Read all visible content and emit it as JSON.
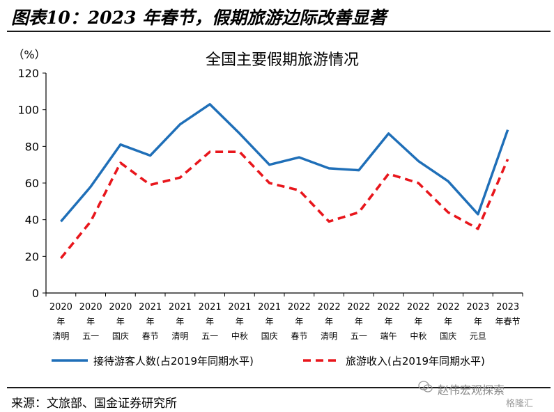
{
  "header": {
    "title": "图表10：2023 年春节，假期旅游边际改善显著"
  },
  "source": {
    "text": "来源：文旅部、国金证券研究所"
  },
  "watermark": {
    "primary": "赵伟宏观探索",
    "secondary": "格隆汇"
  },
  "colors": {
    "series1": "#1f6fb8",
    "series2": "#e8161c",
    "axis": "#000000"
  },
  "chart_data": {
    "type": "line",
    "title": "全国主要假期旅游情况",
    "ylabel": "（%）",
    "ylim": [
      0,
      120
    ],
    "yticks": [
      0,
      20,
      40,
      60,
      80,
      100,
      120
    ],
    "grid": false,
    "legend_position": "bottom",
    "categories": [
      [
        "2020",
        "年",
        "清明"
      ],
      [
        "2020",
        "年",
        "五一"
      ],
      [
        "2020",
        "年",
        "国庆"
      ],
      [
        "2021",
        "年",
        "春节"
      ],
      [
        "2021",
        "年",
        "清明"
      ],
      [
        "2021",
        "年",
        "五一"
      ],
      [
        "2021",
        "年",
        "中秋"
      ],
      [
        "2021",
        "年",
        "国庆"
      ],
      [
        "2022",
        "年",
        "春节"
      ],
      [
        "2022",
        "年",
        "清明"
      ],
      [
        "2022",
        "年",
        "五一"
      ],
      [
        "2022",
        "年",
        "端午"
      ],
      [
        "2022",
        "年",
        "中秋"
      ],
      [
        "2022",
        "年",
        "国庆"
      ],
      [
        "2023",
        "年",
        "元旦"
      ],
      [
        "2023",
        "年春节"
      ]
    ],
    "series": [
      {
        "name": "接待游客人数(占2019年同期水平)",
        "style": "solid",
        "values": [
          39,
          58,
          81,
          75,
          92,
          103,
          87,
          70,
          74,
          68,
          67,
          87,
          72,
          61,
          43,
          89
        ]
      },
      {
        "name": "旅游收入(占2019年同期水平)",
        "style": "dashed",
        "values": [
          19,
          39,
          71,
          59,
          63,
          77,
          77,
          60,
          56,
          39,
          44,
          65,
          60,
          44,
          35,
          73
        ]
      }
    ]
  }
}
